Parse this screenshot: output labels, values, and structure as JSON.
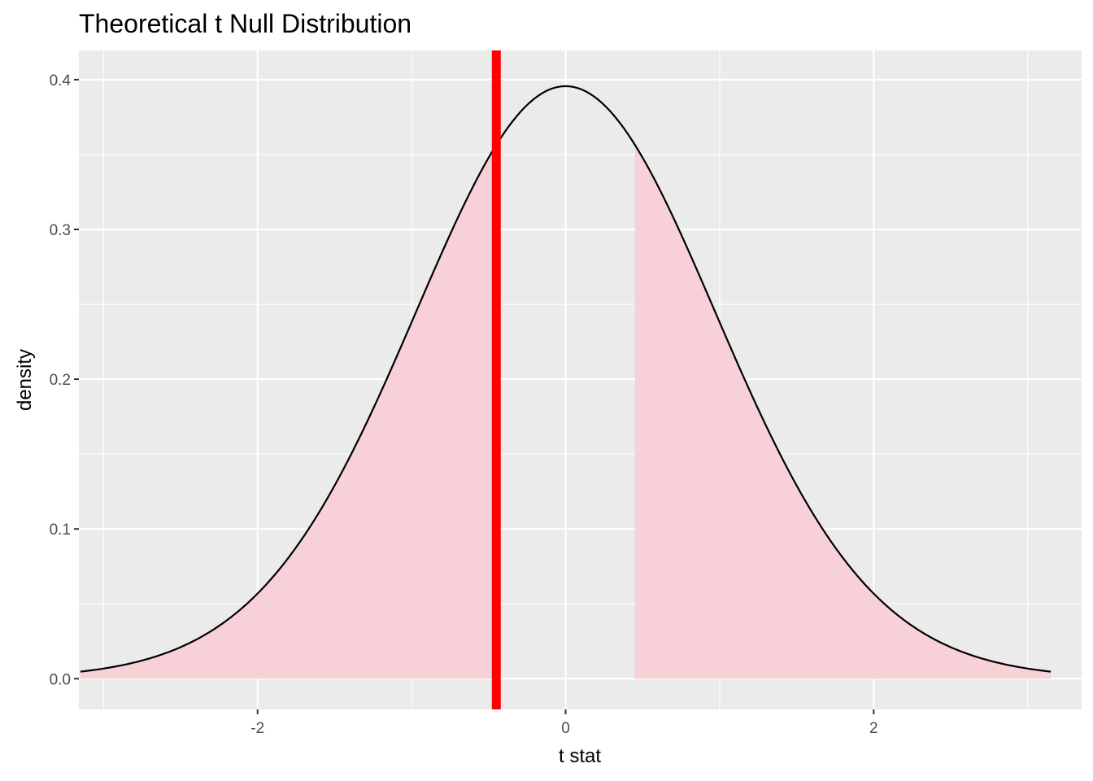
{
  "chart_data": {
    "type": "area",
    "title": "Theoretical t Null Distribution",
    "xlabel": "t stat",
    "ylabel": "density",
    "xlim": [
      -3.16,
      3.35
    ],
    "ylim": [
      -0.0205,
      0.4195
    ],
    "x_ticks": [
      -2,
      0,
      2
    ],
    "x_tick_labels": [
      "-2",
      "0",
      "2"
    ],
    "y_ticks": [
      0.0,
      0.1,
      0.2,
      0.3,
      0.4
    ],
    "y_tick_labels": [
      "0.0",
      "0.1",
      "0.2",
      "0.3",
      "0.4"
    ],
    "grid": true,
    "series": [
      {
        "kind": "density-line",
        "distribution": "t",
        "x_range": [
          -3.15,
          3.15
        ],
        "x": [
          -3.0,
          -2.5,
          -2.0,
          -1.5,
          -1.0,
          -0.5,
          0.0,
          0.5,
          1.0,
          1.5,
          2.0,
          2.5,
          3.0
        ],
        "y": [
          0.005,
          0.018,
          0.055,
          0.13,
          0.24,
          0.35,
          0.398,
          0.35,
          0.24,
          0.13,
          0.055,
          0.018,
          0.005
        ],
        "color": "#000000"
      }
    ],
    "shaded_regions": [
      {
        "x_from": -3.15,
        "x_to": -0.45
      },
      {
        "x_from": 0.45,
        "x_to": 3.15
      }
    ],
    "observed_statistic": -0.45,
    "colors": {
      "panel": "#EBEBEB",
      "grid": "#FFFFFF",
      "shade": "#F8D0D8",
      "line": "#000000",
      "observed_line": "#FF0000",
      "tick_text": "#4D4D4D"
    }
  }
}
